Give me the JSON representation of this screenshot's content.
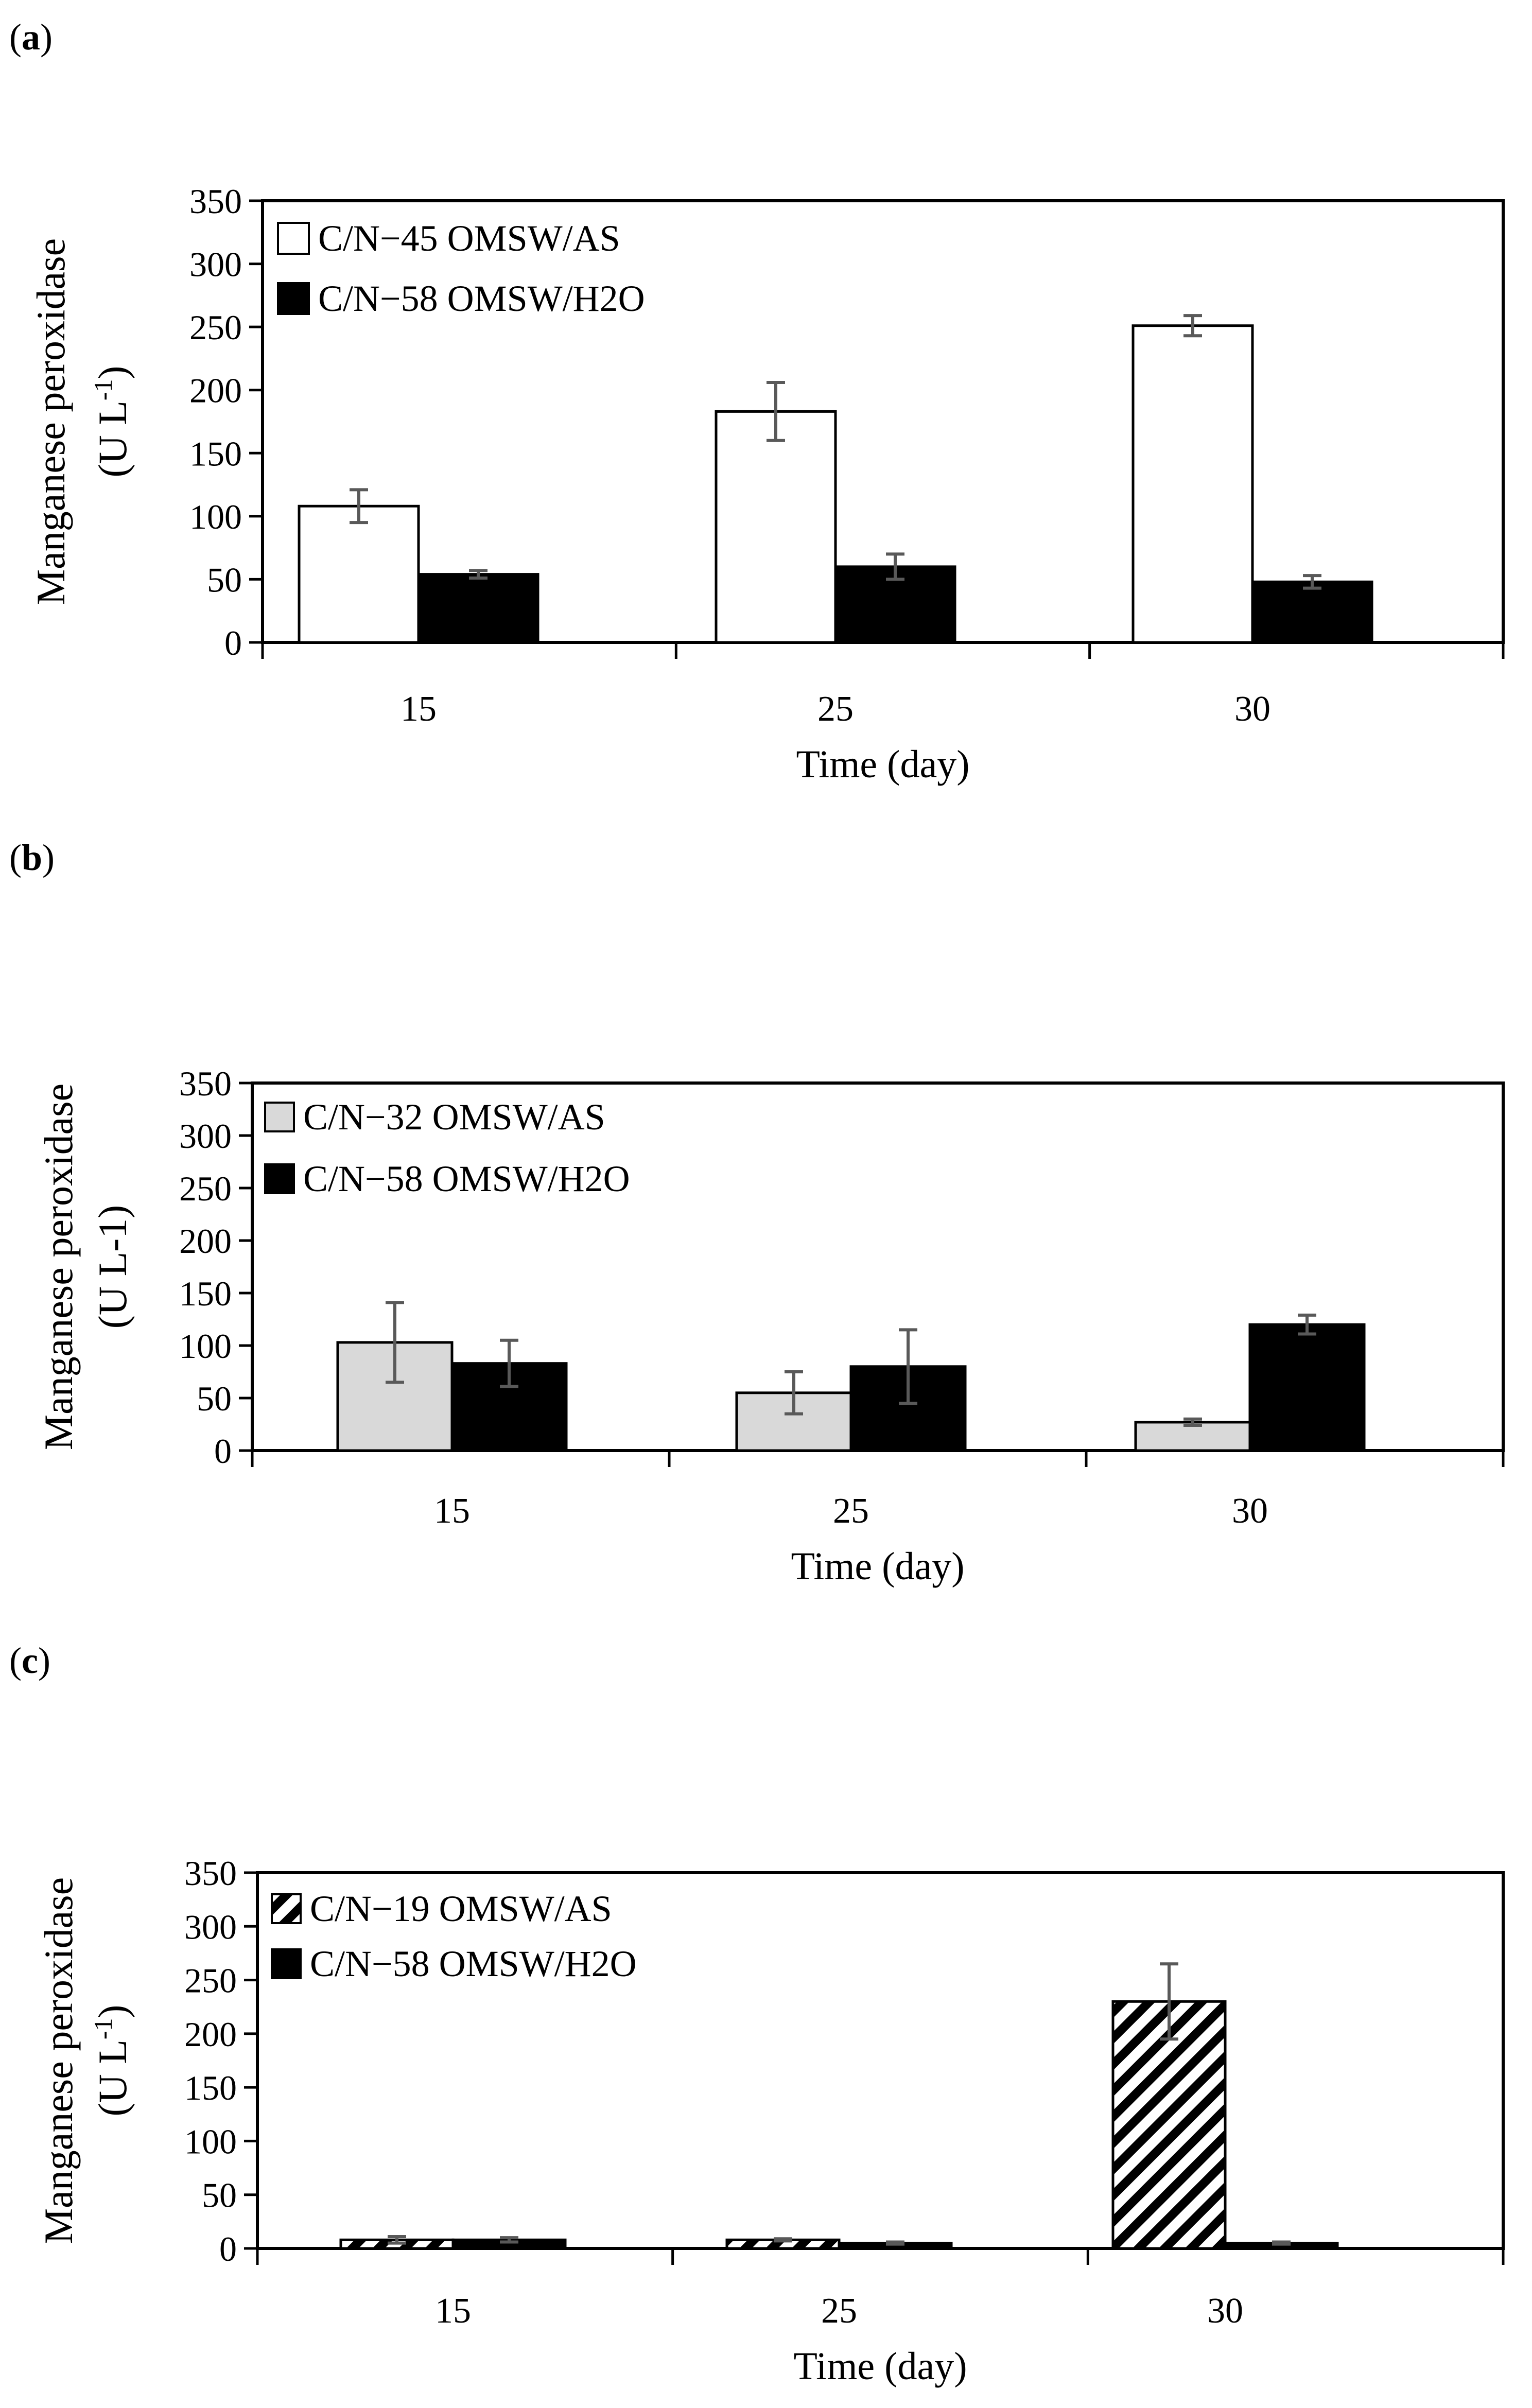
{
  "chart_data": [
    {
      "panel": "(a)",
      "panel_letter": "a",
      "type": "bar",
      "categories": [
        "15",
        "25",
        "30"
      ],
      "series": [
        {
          "name": "C/N−45 OMSW/AS",
          "style": "white",
          "values": [
            108,
            183,
            251
          ],
          "errors": [
            13,
            23,
            8
          ]
        },
        {
          "name": "C/N−58 OMSW/H2O",
          "style": "black",
          "values": [
            54,
            60,
            48
          ],
          "errors": [
            3,
            10,
            5
          ]
        }
      ],
      "ylabel_line1": "Manganese peroxidase",
      "ylabel_line2": "(U L",
      "ylabel_sup": "-1",
      "ylabel_close": ")",
      "xlabel": "Time (day)",
      "ylim": [
        0,
        350
      ],
      "yticks": [
        "0",
        "50",
        "100",
        "150",
        "200",
        "250",
        "300",
        "350"
      ]
    },
    {
      "panel": "(b)",
      "panel_letter": "b",
      "type": "bar",
      "categories": [
        "15",
        "25",
        "30"
      ],
      "series": [
        {
          "name": "C/N−32 OMSW/AS",
          "style": "gray",
          "values": [
            103,
            55,
            27
          ],
          "errors": [
            38,
            20,
            3
          ]
        },
        {
          "name": "C/N−58 OMSW/H2O",
          "style": "black",
          "values": [
            83,
            80,
            120
          ],
          "errors": [
            22,
            35,
            9
          ]
        }
      ],
      "ylabel_line1": "Manganese peroxidase",
      "ylabel_line2": "(U L-1)",
      "ylabel_sup": "",
      "ylabel_close": "",
      "xlabel": "Time (day)",
      "ylim": [
        0,
        350
      ],
      "yticks": [
        "0",
        "50",
        "100",
        "150",
        "200",
        "250",
        "300",
        "350"
      ]
    },
    {
      "panel": "(c)",
      "panel_letter": "c",
      "type": "bar",
      "categories": [
        "15",
        "25",
        "30"
      ],
      "series": [
        {
          "name": "C/N−19 OMSW/AS",
          "style": "hatch",
          "values": [
            8,
            8,
            230
          ],
          "errors": [
            3,
            1,
            35
          ]
        },
        {
          "name": "C/N−58 OMSW/H2O",
          "style": "black",
          "values": [
            8,
            5,
            5
          ],
          "errors": [
            2,
            1,
            1
          ]
        }
      ],
      "ylabel_line1": "Manganese peroxidase",
      "ylabel_line2": "(U L",
      "ylabel_sup": "-1",
      "ylabel_close": ")",
      "xlabel": "Time (day)",
      "ylim": [
        0,
        350
      ],
      "yticks": [
        "0",
        "50",
        "100",
        "150",
        "200",
        "250",
        "300",
        "350"
      ]
    }
  ]
}
